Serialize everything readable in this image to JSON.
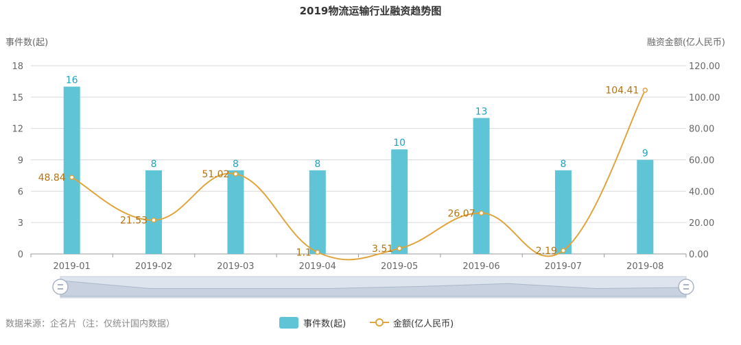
{
  "chart_data": {
    "type": "bar",
    "title": "2019物流运输行业融资趋势图",
    "categories": [
      "2019-01",
      "2019-02",
      "2019-03",
      "2019-04",
      "2019-05",
      "2019-06",
      "2019-07",
      "2019-08"
    ],
    "y_left": {
      "label": "事件数(起)",
      "lim": [
        0,
        18
      ],
      "ticks": [
        0,
        3,
        6,
        9,
        12,
        15,
        18
      ]
    },
    "y_right": {
      "label": "融资金额(亿人民币)",
      "lim": [
        0,
        120
      ],
      "ticks": [
        "0.00",
        "20.00",
        "40.00",
        "60.00",
        "80.00",
        "100.00",
        "120.00"
      ]
    },
    "series": [
      {
        "name": "事件数(起)",
        "type": "bar",
        "axis": "left",
        "color": "#5ec4d6",
        "label_color": "#1fa2c1",
        "values": [
          16,
          8,
          8,
          8,
          10,
          13,
          8,
          9
        ]
      },
      {
        "name": "金额(亿人民币)",
        "type": "line",
        "axis": "right",
        "color": "#e0a43c",
        "label_color": "#b5720f",
        "values": [
          48.84,
          21.53,
          51.02,
          1.1,
          3.51,
          26.07,
          2.19,
          104.41
        ]
      }
    ],
    "grid": true,
    "legend": "bottom-center"
  },
  "footer": {
    "source": "数据来源：企名片（注：仅统计国内数据）"
  },
  "colors": {
    "grid": "#d9d9d9",
    "axis": "#999999",
    "slider_bg": "#dde4ee",
    "slider_line": "#b8c4d6"
  }
}
